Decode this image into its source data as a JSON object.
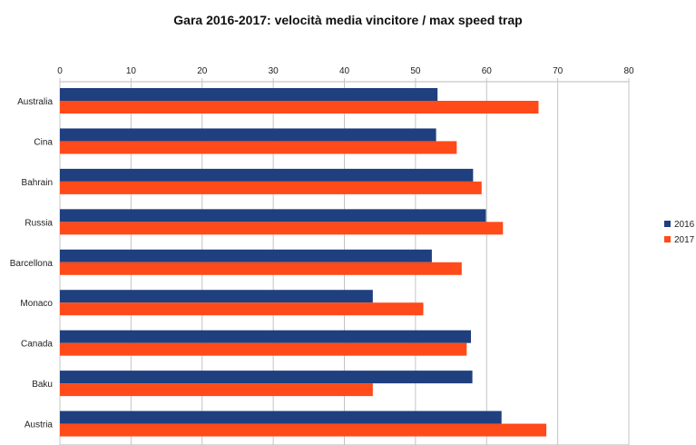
{
  "chart_data": {
    "type": "bar",
    "orientation": "horizontal",
    "title": "Gara 2016-2017: velocità media vincitore / max speed trap",
    "xlabel": "",
    "ylabel": "",
    "categories": [
      "Australia",
      "Cina",
      "Bahrain",
      "Russia",
      "Barcellona",
      "Monaco",
      "Canada",
      "Baku",
      "Austria"
    ],
    "series": [
      {
        "name": "2016",
        "color": "#1f3f7f",
        "values": [
          53.1,
          52.9,
          58.1,
          59.9,
          52.3,
          44.0,
          57.8,
          58.0,
          62.1
        ]
      },
      {
        "name": "2017",
        "color": "#ff4a1a",
        "values": [
          67.3,
          55.8,
          59.3,
          62.3,
          56.5,
          51.1,
          57.2,
          44.0,
          68.4
        ]
      }
    ],
    "xlim": [
      0,
      80
    ],
    "xticks": [
      0,
      10,
      20,
      30,
      40,
      50,
      60,
      70,
      80
    ],
    "x_axis_position": "top",
    "grid": true,
    "legend_position": "right"
  }
}
